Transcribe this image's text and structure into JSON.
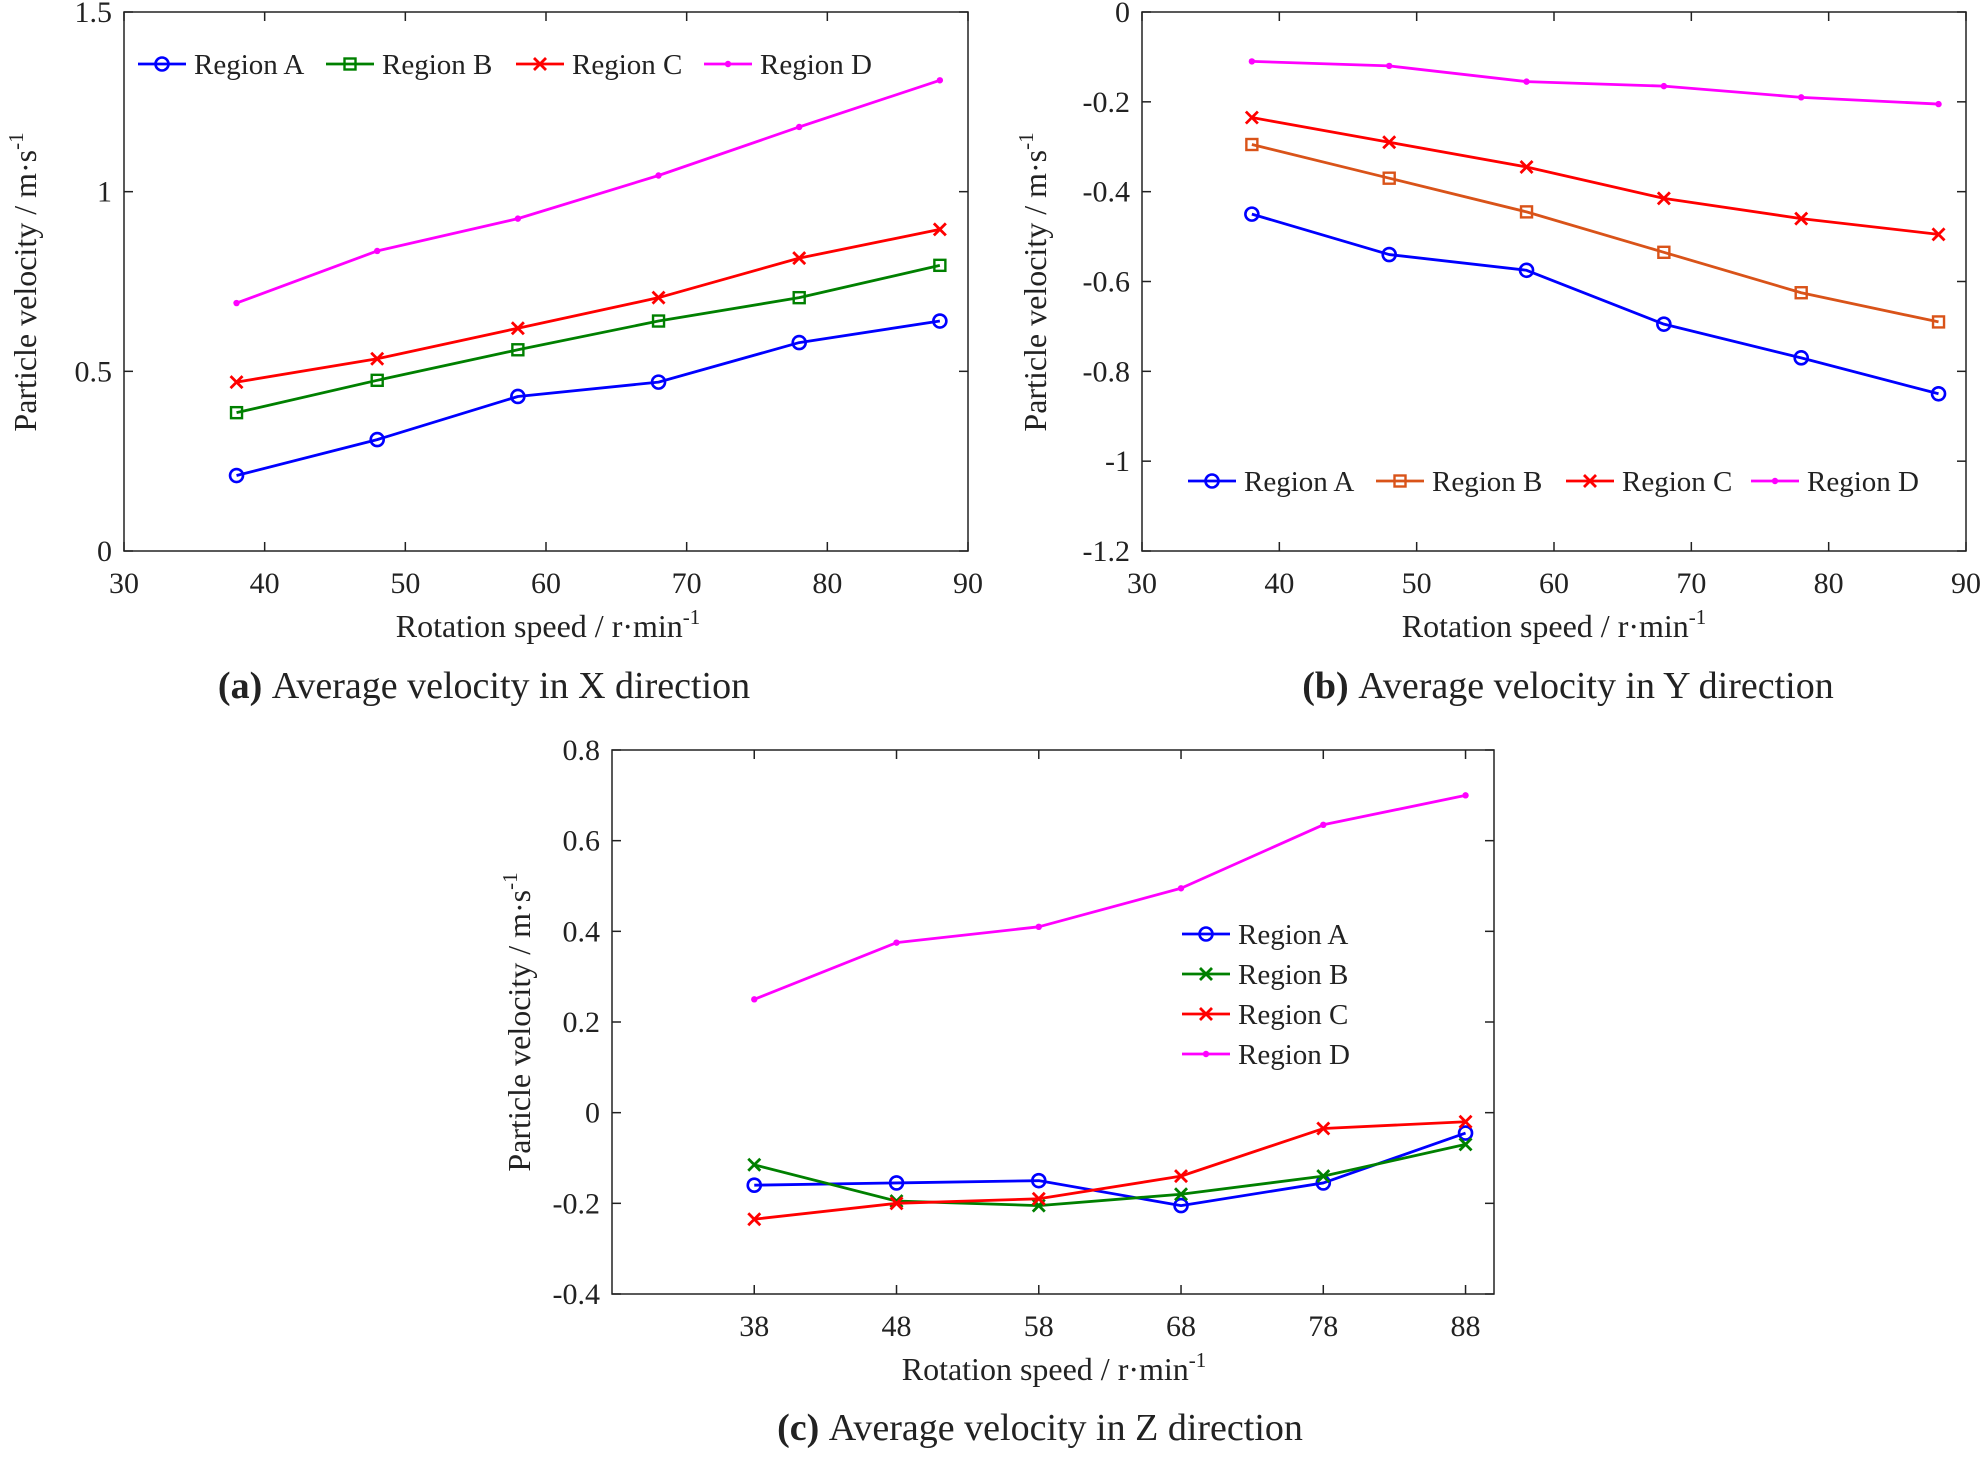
{
  "chart_data": [
    {
      "id": "a",
      "type": "line",
      "caption_prefix": "(a)",
      "caption_text": " Average velocity in X direction",
      "xlabel": "Rotation speed / r·min",
      "xlabel_sup": "-1",
      "ylabel": "Particle velocity / m·s",
      "ylabel_sup": "-1",
      "xlim": [
        30,
        90
      ],
      "ylim": [
        0,
        1.5
      ],
      "xticks": [
        30,
        40,
        50,
        60,
        70,
        80,
        90
      ],
      "yticks": [
        0,
        0.5,
        1,
        1.5
      ],
      "xtick_labels": [
        "30",
        "40",
        "50",
        "60",
        "70",
        "80",
        "90"
      ],
      "ytick_labels": [
        "0",
        "0.5",
        "1",
        "1.5"
      ],
      "legend": "top, horizontal",
      "x": [
        38,
        48,
        58,
        68,
        78,
        88
      ],
      "series": [
        {
          "name": "Region A",
          "marker": "circle",
          "color": "#0000ff",
          "values": [
            0.21,
            0.31,
            0.43,
            0.47,
            0.58,
            0.64
          ]
        },
        {
          "name": "Region B",
          "marker": "square",
          "color": "#008000",
          "values": [
            0.385,
            0.475,
            0.56,
            0.64,
            0.705,
            0.795
          ]
        },
        {
          "name": "Region C",
          "marker": "x",
          "color": "#ff0000",
          "values": [
            0.47,
            0.535,
            0.62,
            0.705,
            0.815,
            0.895
          ]
        },
        {
          "name": "Region D",
          "marker": "dot",
          "color": "#ff00ff",
          "values": [
            0.69,
            0.835,
            0.925,
            1.045,
            1.18,
            1.31
          ]
        }
      ]
    },
    {
      "id": "b",
      "type": "line",
      "caption_prefix": "(b)",
      "caption_text": " Average velocity in Y direction",
      "xlabel": "Rotation speed / r·min",
      "xlabel_sup": "-1",
      "ylabel": "Particle velocity / m·s",
      "ylabel_sup": "-1",
      "xlim": [
        30,
        90
      ],
      "ylim": [
        -1.2,
        0
      ],
      "xticks": [
        30,
        40,
        50,
        60,
        70,
        80,
        90
      ],
      "yticks": [
        -1.2,
        -1,
        -0.8,
        -0.6,
        -0.4,
        -0.2,
        0
      ],
      "xtick_labels": [
        "30",
        "40",
        "50",
        "60",
        "70",
        "80",
        "90"
      ],
      "ytick_labels": [
        "-1.2",
        "-1",
        "-0.8",
        "-0.6",
        "-0.4",
        "-0.2",
        "0"
      ],
      "legend": "bottom, horizontal",
      "x": [
        38,
        48,
        58,
        68,
        78,
        88
      ],
      "series": [
        {
          "name": "Region A",
          "marker": "circle",
          "color": "#0000ff",
          "values": [
            -0.45,
            -0.54,
            -0.575,
            -0.695,
            -0.77,
            -0.85
          ]
        },
        {
          "name": "Region B",
          "marker": "square",
          "color": "#d95319",
          "values": [
            -0.295,
            -0.37,
            -0.445,
            -0.535,
            -0.625,
            -0.69
          ]
        },
        {
          "name": "Region C",
          "marker": "x",
          "color": "#ff0000",
          "values": [
            -0.235,
            -0.29,
            -0.345,
            -0.415,
            -0.46,
            -0.495
          ]
        },
        {
          "name": "Region D",
          "marker": "dot",
          "color": "#ff00ff",
          "values": [
            -0.11,
            -0.12,
            -0.155,
            -0.165,
            -0.19,
            -0.205
          ]
        }
      ]
    },
    {
      "id": "c",
      "type": "line",
      "caption_prefix": "(c)",
      "caption_text": " Average velocity in Z direction",
      "xlabel": "Rotation speed / r·min",
      "xlabel_sup": "-1",
      "ylabel": "Particle velocity / m·s",
      "ylabel_sup": "-1",
      "xlim": [
        28,
        90
      ],
      "ylim": [
        -0.4,
        0.8
      ],
      "xticks": [
        38,
        48,
        58,
        68,
        78,
        88
      ],
      "yticks": [
        -0.4,
        -0.2,
        0,
        0.2,
        0.4,
        0.6,
        0.8
      ],
      "xtick_labels": [
        "38",
        "48",
        "58",
        "68",
        "78",
        "88"
      ],
      "ytick_labels": [
        "-0.4",
        "-0.2",
        "0",
        "0.2",
        "0.4",
        "0.6",
        "0.8"
      ],
      "legend": "center-right, vertical",
      "x": [
        38,
        48,
        58,
        68,
        78,
        88
      ],
      "series": [
        {
          "name": "Region A",
          "marker": "circle",
          "color": "#0000ff",
          "values": [
            -0.16,
            -0.155,
            -0.15,
            -0.205,
            -0.155,
            -0.045
          ]
        },
        {
          "name": "Region B",
          "marker": "x",
          "color": "#008000",
          "values": [
            -0.115,
            -0.195,
            -0.205,
            -0.18,
            -0.14,
            -0.07
          ]
        },
        {
          "name": "Region C",
          "marker": "x",
          "color": "#ff0000",
          "values": [
            -0.235,
            -0.2,
            -0.19,
            -0.14,
            -0.035,
            -0.02
          ]
        },
        {
          "name": "Region D",
          "marker": "dot",
          "color": "#ff00ff",
          "values": [
            0.25,
            0.375,
            0.41,
            0.495,
            0.635,
            0.7
          ]
        }
      ]
    }
  ]
}
